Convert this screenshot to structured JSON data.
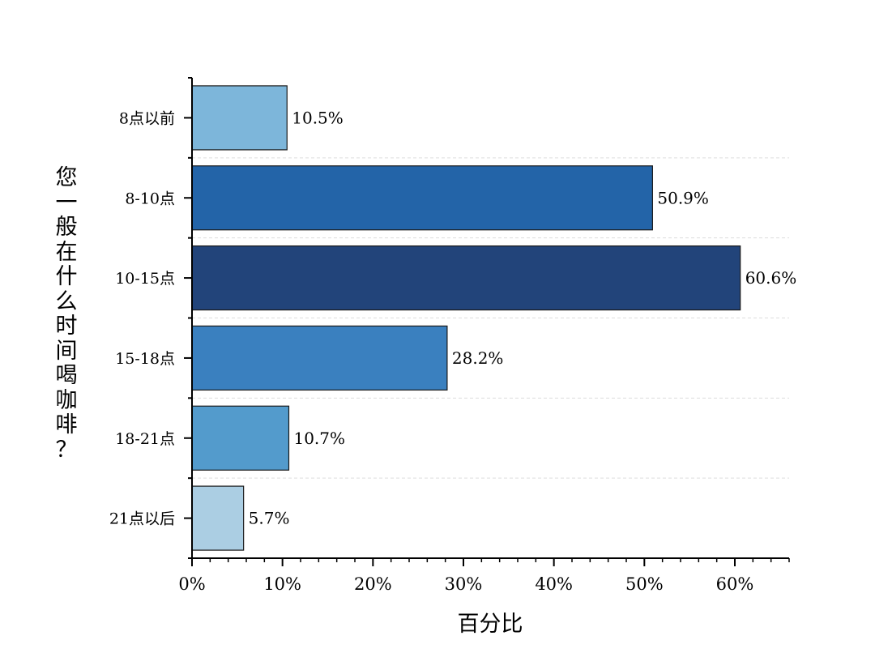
{
  "chart_data": {
    "type": "bar",
    "orientation": "horizontal",
    "categories": [
      "8点以前",
      "8-10点",
      "10-15点",
      "15-18点",
      "18-21点",
      "21点以后"
    ],
    "values": [
      10.5,
      50.9,
      60.6,
      28.2,
      10.7,
      5.7
    ],
    "value_labels": [
      "10.5%",
      "50.9%",
      "60.6%",
      "28.2%",
      "10.7%",
      "5.7%"
    ],
    "colors": [
      "#7db6da",
      "#2364a8",
      "#22447a",
      "#3a80bf",
      "#539bcc",
      "#abcee3"
    ],
    "xlabel": "百分比",
    "ylabel": "您一般在什么时间喝咖啡？",
    "xlim": [
      0,
      66
    ],
    "xticks": [
      0,
      10,
      20,
      30,
      40,
      50,
      60
    ],
    "xtick_labels": [
      "0%",
      "10%",
      "20%",
      "30%",
      "40%",
      "50%",
      "60%"
    ],
    "grid": "horizontal dashed between bars"
  }
}
